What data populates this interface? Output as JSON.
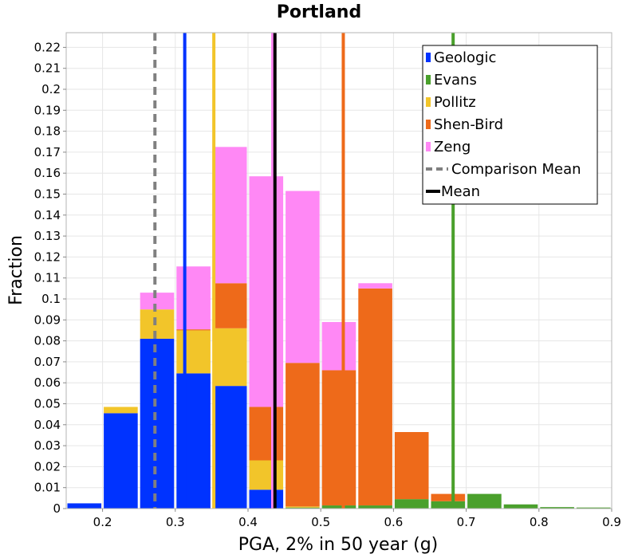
{
  "chart_data": {
    "type": "bar",
    "stacked": true,
    "title": "Portland",
    "xlabel": "PGA, 2% in 50 year (g)",
    "ylabel": "Fraction",
    "xlim": [
      0.15,
      0.9
    ],
    "ylim": [
      0,
      0.227
    ],
    "x_ticks": [
      0.2,
      0.3,
      0.4,
      0.5,
      0.6,
      0.7,
      0.8,
      0.9
    ],
    "x_tick_labels": [
      "0.2",
      "0.3",
      "0.4",
      "0.5",
      "0.6",
      "0.7",
      "0.8",
      "0.9"
    ],
    "y_ticks": [
      0,
      0.01,
      0.02,
      0.03,
      0.04,
      0.05,
      0.06,
      0.07,
      0.08,
      0.09,
      0.1,
      0.11,
      0.12,
      0.13,
      0.14,
      0.15,
      0.16,
      0.17,
      0.18,
      0.19,
      0.2,
      0.21,
      0.22
    ],
    "y_tick_labels": [
      "0",
      "0.01",
      "0.02",
      "0.03",
      "0.04",
      "0.05",
      "0.06",
      "0.07",
      "0.08",
      "0.09",
      "0.1",
      "0.11",
      "0.12",
      "0.13",
      "0.14",
      "0.15",
      "0.16",
      "0.17",
      "0.18",
      "0.19",
      "0.2",
      "0.21",
      "0.22"
    ],
    "grid": true,
    "legend_position": "top-right",
    "bin_width": 0.05,
    "bin_starts": [
      0.15,
      0.2,
      0.25,
      0.3,
      0.35,
      0.4,
      0.45,
      0.5,
      0.55,
      0.6,
      0.65,
      0.7,
      0.75,
      0.8,
      0.85
    ],
    "series": [
      {
        "name": "Geologic",
        "color": "#0033ff",
        "values": [
          0.0025,
          0.0455,
          0.081,
          0.0645,
          0.0585,
          0.009,
          0,
          0,
          0,
          0,
          0,
          0,
          0,
          0,
          0
        ]
      },
      {
        "name": "Evans",
        "color": "#4aa02c",
        "values": [
          0,
          0,
          0,
          0,
          0,
          0,
          0.0005,
          0.0015,
          0.0015,
          0.0045,
          0.0035,
          0.007,
          0.002,
          0.0007,
          0.0005
        ]
      },
      {
        "name": "Pollitz",
        "color": "#f2c52a",
        "values": [
          0,
          0.003,
          0.014,
          0.0205,
          0.0275,
          0.014,
          0.0005,
          0,
          0,
          0,
          0,
          0,
          0,
          0,
          0
        ]
      },
      {
        "name": "Shen-Bird",
        "color": "#ee6a1a",
        "values": [
          0,
          0,
          0,
          0.0005,
          0.0215,
          0.0255,
          0.0685,
          0.0645,
          0.1035,
          0.032,
          0.0035,
          0,
          0,
          0,
          0
        ]
      },
      {
        "name": "Zeng",
        "color": "#ff88f5",
        "values": [
          0,
          0,
          0.008,
          0.03,
          0.065,
          0.11,
          0.082,
          0.023,
          0.0025,
          0,
          0,
          0,
          0,
          0,
          0
        ]
      }
    ],
    "vertical_lines": [
      {
        "name": "Geologic",
        "x": 0.313,
        "color": "#0033ff",
        "style": "solid"
      },
      {
        "name": "Pollitz",
        "x": 0.353,
        "color": "#f2c52a",
        "style": "solid"
      },
      {
        "name": "Shen-Bird",
        "x": 0.531,
        "color": "#ee6a1a",
        "style": "solid"
      },
      {
        "name": "Evans",
        "x": 0.682,
        "color": "#4aa02c",
        "style": "solid"
      },
      {
        "name": "Zeng",
        "x": 0.434,
        "color": "#ff88f5",
        "style": "solid"
      },
      {
        "name": "Comparison Mean",
        "x": 0.272,
        "color": "#808080",
        "style": "dashed"
      },
      {
        "name": "Mean",
        "x": 0.437,
        "color": "#000000",
        "style": "solid"
      }
    ],
    "legend": [
      {
        "label": "Geologic",
        "color": "#0033ff",
        "kind": "box"
      },
      {
        "label": "Evans",
        "color": "#4aa02c",
        "kind": "box"
      },
      {
        "label": "Pollitz",
        "color": "#f2c52a",
        "kind": "box"
      },
      {
        "label": "Shen-Bird",
        "color": "#ee6a1a",
        "kind": "box"
      },
      {
        "label": "Zeng",
        "color": "#ff88f5",
        "kind": "box"
      },
      {
        "label": "Comparison Mean",
        "color": "#808080",
        "kind": "dashed-line"
      },
      {
        "label": "Mean",
        "color": "#000000",
        "kind": "line"
      }
    ]
  }
}
